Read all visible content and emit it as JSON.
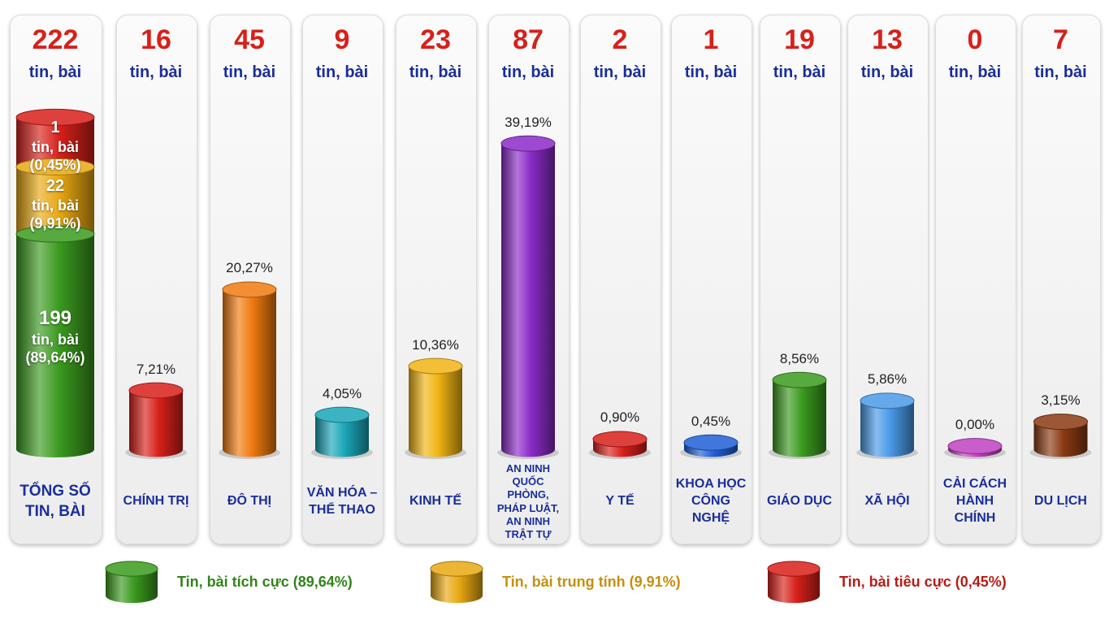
{
  "chart_data": {
    "type": "cylinder-bar",
    "unit_label": "tin, bài",
    "total": {
      "count": 222,
      "category": "TỔNG SỐ TIN, BÀI",
      "segments": [
        {
          "name": "Tin, bài tích cực (89,64%)",
          "value": 199,
          "percent": 89.64,
          "percent_label": "(89,64%)",
          "color": "#3a9a1e"
        },
        {
          "name": "Tin, bài trung tính (9,91%)",
          "value": 22,
          "percent": 9.91,
          "percent_label": "(9,91%)",
          "color": "#e8a812"
        },
        {
          "name": "Tin, bài tiêu cực (0,45%)",
          "value": 1,
          "percent": 0.45,
          "percent_label": "(0,45%)",
          "color": "#d8201a"
        }
      ]
    },
    "categories": [
      "CHÍNH TRỊ",
      "ĐÔ THỊ",
      "VĂN HÓA – THỂ THAO",
      "KINH TẾ",
      "AN NINH QUỐC PHÒNG, PHÁP LUẬT, AN NINH TRẬT TỰ",
      "Y TẾ",
      "KHOA HỌC CÔNG NGHỆ",
      "GIÁO DỤC",
      "XÃ HỘI",
      "CẢI CÁCH HÀNH CHÍNH",
      "DU LỊCH"
    ],
    "counts": [
      16,
      45,
      9,
      23,
      87,
      2,
      1,
      19,
      13,
      0,
      7
    ],
    "values": [
      7.21,
      20.27,
      4.05,
      10.36,
      39.19,
      0.9,
      0.45,
      8.56,
      5.86,
      0.0,
      3.15
    ],
    "value_labels": [
      "7,21%",
      "20,27%",
      "4,05%",
      "10,36%",
      "39,19%",
      "0,90%",
      "0,45%",
      "8,56%",
      "5,86%",
      "0,00%",
      "3,15%"
    ],
    "colors": [
      "#d8201a",
      "#f07a10",
      "#1aa6b8",
      "#f0b414",
      "#8a2bc8",
      "#d8201a",
      "#1f5fd6",
      "#3a9a1e",
      "#4a9ae8",
      "#c040c0",
      "#8a3a12"
    ]
  }
}
